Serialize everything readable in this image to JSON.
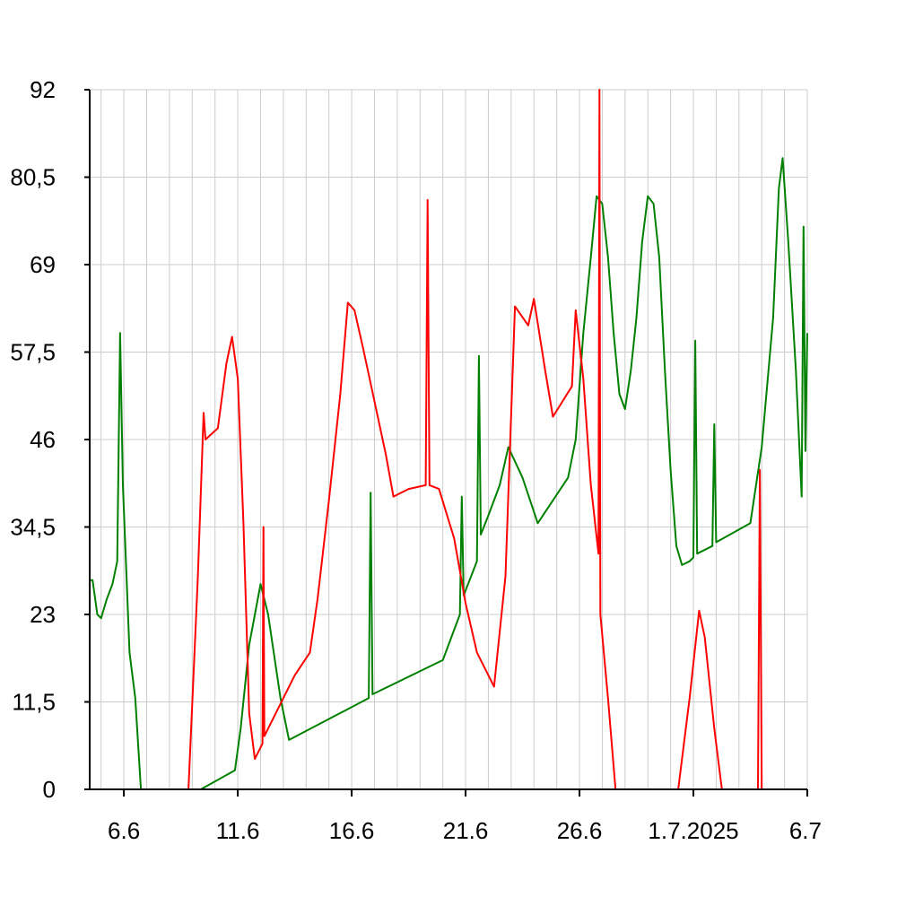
{
  "chart_data": {
    "type": "line",
    "title": "",
    "xlabel": "",
    "ylabel": "",
    "xlim": [
      "2025-06-04T12:00",
      "2025-07-06T00:00"
    ],
    "ylim": [
      0,
      92
    ],
    "y_ticks": [
      0,
      11.5,
      23,
      34.5,
      46,
      57.5,
      69,
      80.5,
      92
    ],
    "y_tick_labels": [
      "0",
      "11,5",
      "23",
      "34,5",
      "46",
      "57,5",
      "69",
      "80,5",
      "92"
    ],
    "x_ticks": [
      "2025-06-06",
      "2025-06-11",
      "2025-06-16",
      "2025-06-21",
      "2025-06-26",
      "2025-07-01",
      "2025-07-06"
    ],
    "x_tick_labels": [
      "6.6",
      "11.6",
      "16.6",
      "21.6",
      "26.6",
      "1.7.2025",
      "6.7"
    ],
    "grid": true,
    "legend": "none",
    "series": [
      {
        "color": "#008000",
        "points": [
          [
            "2025-06-04T12:00",
            27.5
          ],
          [
            "2025-06-04T15:00",
            27.5
          ],
          [
            "2025-06-04T20:00",
            23
          ],
          [
            "2025-06-05T00:00",
            22.5
          ],
          [
            "2025-06-05T06:00",
            25
          ],
          [
            "2025-06-05T12:00",
            27
          ],
          [
            "2025-06-05T17:00",
            30
          ],
          [
            "2025-06-05T20:00",
            60
          ],
          [
            "2025-06-05T23:00",
            40
          ],
          [
            "2025-06-06T06:00",
            18
          ],
          [
            "2025-06-06T12:00",
            12
          ],
          [
            "2025-06-06T18:00",
            0
          ],
          [
            "2025-06-09T09:00",
            0
          ],
          [
            "2025-06-10T21:00",
            2.5
          ],
          [
            "2025-06-11T03:00",
            8
          ],
          [
            "2025-06-11T12:00",
            19
          ],
          [
            "2025-06-12T00:00",
            27
          ],
          [
            "2025-06-12T08:00",
            23
          ],
          [
            "2025-06-12T21:00",
            12
          ],
          [
            "2025-06-13T06:00",
            6.5
          ],
          [
            "2025-06-16T18:00",
            12
          ],
          [
            "2025-06-16T20:00",
            39
          ],
          [
            "2025-06-16T22:00",
            12.5
          ],
          [
            "2025-06-20T00:00",
            17
          ],
          [
            "2025-06-20T18:00",
            23
          ],
          [
            "2025-06-20T20:00",
            38.5
          ],
          [
            "2025-06-20T22:00",
            25.5
          ],
          [
            "2025-06-21T12:00",
            30
          ],
          [
            "2025-06-21T14:00",
            57
          ],
          [
            "2025-06-21T16:00",
            33.5
          ],
          [
            "2025-06-22T00:00",
            36
          ],
          [
            "2025-06-22T12:00",
            40
          ],
          [
            "2025-06-22T21:00",
            45
          ],
          [
            "2025-06-23T12:00",
            41
          ],
          [
            "2025-06-24T04:00",
            35
          ],
          [
            "2025-06-25T12:00",
            41
          ],
          [
            "2025-06-25T20:00",
            46
          ],
          [
            "2025-06-26T04:00",
            60
          ],
          [
            "2025-06-26T12:00",
            70
          ],
          [
            "2025-06-26T18:00",
            78
          ],
          [
            "2025-06-27T00:00",
            77
          ],
          [
            "2025-06-27T06:00",
            70
          ],
          [
            "2025-06-27T12:00",
            60
          ],
          [
            "2025-06-27T18:00",
            52
          ],
          [
            "2025-06-28T00:00",
            50
          ],
          [
            "2025-06-28T06:00",
            55
          ],
          [
            "2025-06-28T12:00",
            62
          ],
          [
            "2025-06-28T18:00",
            72
          ],
          [
            "2025-06-29T00:00",
            78
          ],
          [
            "2025-06-29T06:00",
            77
          ],
          [
            "2025-06-29T12:00",
            70
          ],
          [
            "2025-06-29T18:00",
            55
          ],
          [
            "2025-06-30T00:00",
            42
          ],
          [
            "2025-06-30T06:00",
            32
          ],
          [
            "2025-06-30T12:00",
            29.5
          ],
          [
            "2025-06-30T20:00",
            30
          ],
          [
            "2025-07-01T00:00",
            30.5
          ],
          [
            "2025-07-01T02:00",
            59
          ],
          [
            "2025-07-01T04:00",
            31
          ],
          [
            "2025-07-01T20:00",
            32
          ],
          [
            "2025-07-01T22:00",
            48
          ],
          [
            "2025-07-02T00:00",
            32.5
          ],
          [
            "2025-07-03T12:00",
            35
          ],
          [
            "2025-07-04T00:00",
            45
          ],
          [
            "2025-07-04T12:00",
            62
          ],
          [
            "2025-07-04T18:00",
            79
          ],
          [
            "2025-07-04T22:00",
            83
          ],
          [
            "2025-07-05T04:00",
            72
          ],
          [
            "2025-07-05T12:00",
            55
          ],
          [
            "2025-07-05T18:00",
            38.5
          ],
          [
            "2025-07-05T20:00",
            74
          ],
          [
            "2025-07-05T22:00",
            44.5
          ],
          [
            "2025-07-06T00:00",
            60
          ]
        ]
      },
      {
        "color": "#ff0000",
        "points": [
          [
            "2025-06-04T12:00",
            0
          ],
          [
            "2025-06-08T20:00",
            0
          ],
          [
            "2025-06-09T06:00",
            28
          ],
          [
            "2025-06-09T12:00",
            49.5
          ],
          [
            "2025-06-09T14:00",
            46
          ],
          [
            "2025-06-10T03:00",
            47.5
          ],
          [
            "2025-06-10T12:00",
            56
          ],
          [
            "2025-06-10T18:00",
            59.5
          ],
          [
            "2025-06-11T00:00",
            54
          ],
          [
            "2025-06-11T06:00",
            35
          ],
          [
            "2025-06-11T12:00",
            10
          ],
          [
            "2025-06-11T18:00",
            4
          ],
          [
            "2025-06-12T02:00",
            6
          ],
          [
            "2025-06-12T03:00",
            34.5
          ],
          [
            "2025-06-12T04:00",
            7
          ],
          [
            "2025-06-13T12:00",
            15
          ],
          [
            "2025-06-14T04:00",
            18
          ],
          [
            "2025-06-14T12:00",
            25
          ],
          [
            "2025-06-15T00:00",
            38
          ],
          [
            "2025-06-15T12:00",
            52
          ],
          [
            "2025-06-15T20:00",
            64
          ],
          [
            "2025-06-16T03:00",
            63
          ],
          [
            "2025-06-16T12:00",
            58
          ],
          [
            "2025-06-17T00:00",
            51
          ],
          [
            "2025-06-17T12:00",
            44
          ],
          [
            "2025-06-17T20:00",
            38.5
          ],
          [
            "2025-06-18T12:00",
            39.5
          ],
          [
            "2025-06-19T06:00",
            40
          ],
          [
            "2025-06-19T08:00",
            77.5
          ],
          [
            "2025-06-19T10:00",
            40
          ],
          [
            "2025-06-19T20:00",
            39.5
          ],
          [
            "2025-06-20T12:00",
            33
          ],
          [
            "2025-06-21T00:00",
            24.5
          ],
          [
            "2025-06-21T12:00",
            18
          ],
          [
            "2025-06-22T06:00",
            13.5
          ],
          [
            "2025-06-22T18:00",
            28
          ],
          [
            "2025-06-23T04:00",
            63.5
          ],
          [
            "2025-06-23T18:00",
            61
          ],
          [
            "2025-06-24T00:00",
            64.5
          ],
          [
            "2025-06-24T12:00",
            55
          ],
          [
            "2025-06-24T20:00",
            49
          ],
          [
            "2025-06-25T06:00",
            51
          ],
          [
            "2025-06-25T16:00",
            53
          ],
          [
            "2025-06-25T20:00",
            63
          ],
          [
            "2025-06-26T04:00",
            54
          ],
          [
            "2025-06-26T12:00",
            40
          ],
          [
            "2025-06-26T20:00",
            31
          ],
          [
            "2025-06-26T21:00",
            92
          ],
          [
            "2025-06-26T22:00",
            23
          ],
          [
            "2025-06-27T06:00",
            12
          ],
          [
            "2025-06-27T14:00",
            0
          ],
          [
            "2025-06-30T08:00",
            0
          ],
          [
            "2025-06-30T20:00",
            12
          ],
          [
            "2025-07-01T06:00",
            23.5
          ],
          [
            "2025-07-01T12:00",
            20
          ],
          [
            "2025-07-01T22:00",
            8
          ],
          [
            "2025-07-02T06:00",
            0
          ],
          [
            "2025-07-03T20:00",
            0
          ],
          [
            "2025-07-03T22:00",
            42
          ],
          [
            "2025-07-04T00:00",
            0
          ],
          [
            "2025-07-06T00:00",
            0
          ]
        ]
      }
    ]
  }
}
